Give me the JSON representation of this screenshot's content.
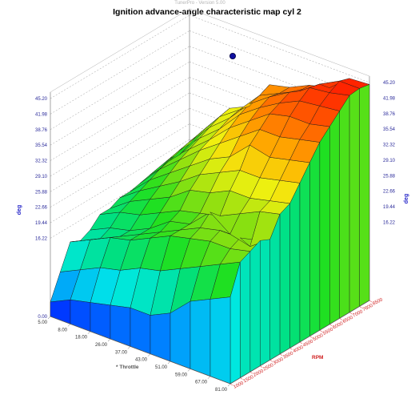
{
  "window": {
    "watermark": "TunerPro - Version 5.00"
  },
  "chart_data": {
    "type": "surface3d",
    "title": "Ignition advance-angle characteristic map cyl 2",
    "zlabel": "deg",
    "xlabel": "Throttle",
    "ylabel": "RPM",
    "z_ticks": [
      "45.20",
      "41.98",
      "38.76",
      "35.54",
      "32.32",
      "29.10",
      "25.88",
      "22.66",
      "19.44",
      "16.22"
    ],
    "z_ticks_left": [
      "45.20",
      "41.98",
      "38.76",
      "35.54",
      "32.32",
      "29.10",
      "25.88",
      "22.66",
      "19.44",
      "16.22",
      "0.00"
    ],
    "throttle_ticks": [
      "5.00",
      "8.00",
      "18.00",
      "26.00",
      "37.00",
      "43.00",
      "51.00",
      "59.00",
      "67.00",
      "81.00"
    ],
    "rpm_ticks": [
      "1000",
      "1500",
      "2000",
      "2500",
      "3000",
      "3500",
      "4000",
      "4500",
      "5000",
      "5500",
      "6000",
      "6500",
      "7000",
      "7600",
      "8500"
    ],
    "zlim": [
      0,
      45.2
    ],
    "grid": true,
    "colormap": [
      "#0000ff",
      "#0090ff",
      "#00e8e8",
      "#00e080",
      "#20e020",
      "#90e010",
      "#f0f010",
      "#ffb000",
      "#ff6000",
      "#ff2000"
    ],
    "values": [
      [
        3.0,
        8.0,
        13.0,
        12.0,
        13.0,
        15.0,
        15.0,
        16.0,
        16.0,
        16.5,
        17.0,
        17.0,
        17.5,
        17.5,
        18.0
      ],
      [
        5.0,
        10.0,
        15.0,
        14.0,
        15.0,
        17.0,
        18.0,
        19.0,
        20.0,
        21.0,
        22.0,
        22.5,
        23.0,
        23.5,
        24.0
      ],
      [
        6.0,
        12.0,
        17.0,
        16.0,
        16.0,
        18.0,
        20.0,
        21.5,
        23.0,
        24.5,
        25.5,
        26.5,
        27.5,
        28.5,
        29.0
      ],
      [
        7.0,
        13.0,
        18.0,
        18.0,
        18.0,
        20.0,
        22.0,
        24.0,
        26.0,
        28.0,
        29.0,
        30.0,
        31.0,
        31.5,
        31.0
      ],
      [
        8.0,
        15.0,
        20.0,
        20.0,
        21.0,
        22.0,
        25.0,
        27.0,
        29.0,
        31.0,
        33.0,
        34.5,
        35.5,
        36.0,
        37.0
      ],
      [
        8.0,
        16.0,
        22.0,
        22.0,
        22.0,
        23.0,
        26.0,
        29.0,
        31.0,
        34.0,
        36.0,
        37.5,
        38.5,
        38.0,
        38.0
      ],
      [
        10.0,
        18.0,
        23.0,
        24.0,
        26.0,
        24.0,
        28.0,
        31.0,
        35.0,
        37.0,
        39.0,
        40.0,
        41.0,
        40.0,
        40.0
      ],
      [
        14.0,
        20.0,
        24.0,
        25.0,
        23.0,
        26.0,
        28.0,
        31.0,
        34.0,
        37.0,
        40.0,
        42.0,
        43.5,
        43.0,
        41.0
      ],
      [
        16.0,
        22.0,
        24.0,
        25.0,
        22.0,
        28.0,
        29.0,
        32.0,
        35.0,
        38.0,
        40.0,
        42.5,
        44.0,
        45.2,
        44.5
      ],
      [
        18.0,
        24.0,
        25.0,
        26.0,
        25.0,
        29.0,
        30.0,
        33.0,
        36.0,
        39.0,
        41.0,
        43.0,
        45.0,
        45.2,
        44.8
      ]
    ]
  }
}
